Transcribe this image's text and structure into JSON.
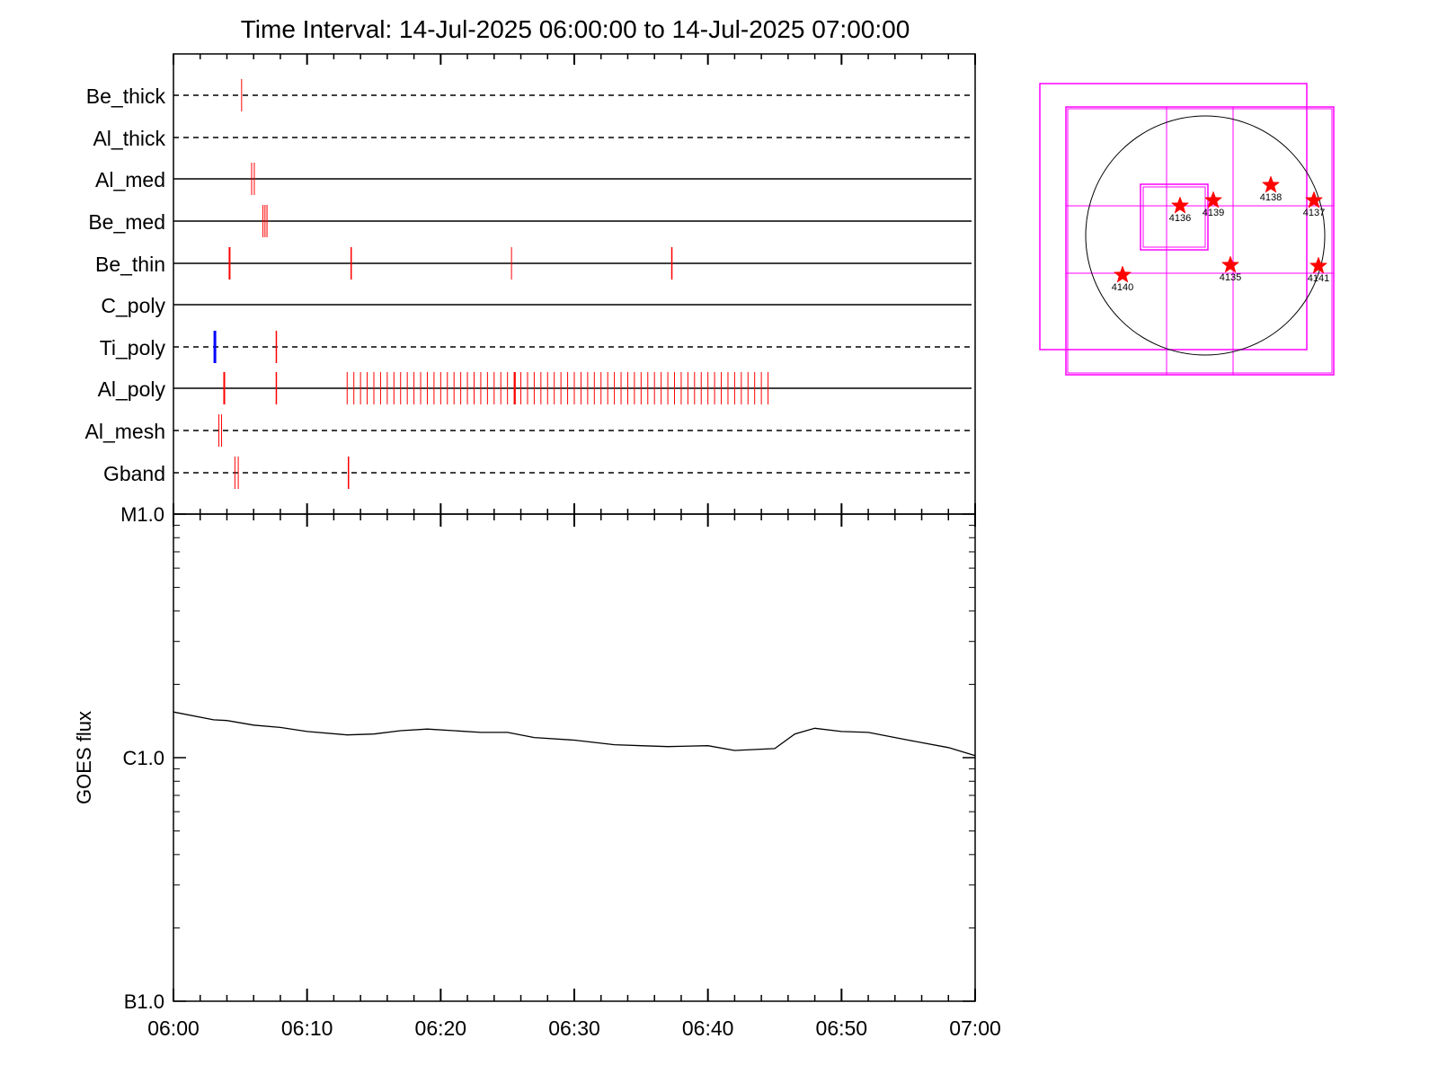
{
  "chart_data": [
    {
      "type": "timeline",
      "title": "Time Interval: 14-Jul-2025 06:00:00 to 14-Jul-2025 07:00:00",
      "x_range": [
        "06:00",
        "07:00"
      ],
      "rows": [
        {
          "name": "Be_thick",
          "baseline": "dashed",
          "events": [
            {
              "t": 5.1,
              "color": "#ff0000",
              "width": 1
            }
          ]
        },
        {
          "name": "Al_thick",
          "baseline": "dashed",
          "events": []
        },
        {
          "name": "Al_med",
          "baseline": "solid",
          "events": [
            {
              "t": 5.85,
              "color": "#ff0000",
              "width": 1
            },
            {
              "t": 6.05,
              "color": "#ff0000",
              "width": 1
            }
          ]
        },
        {
          "name": "Be_med",
          "baseline": "solid",
          "events": [
            {
              "t": 6.7,
              "color": "#ff0000",
              "width": 1
            },
            {
              "t": 6.85,
              "color": "#ff0000",
              "width": 1
            },
            {
              "t": 7.0,
              "color": "#ff0000",
              "width": 1
            }
          ]
        },
        {
          "name": "Be_thin",
          "baseline": "solid",
          "events": [
            {
              "t": 4.2,
              "color": "#ff0000",
              "width": 2
            },
            {
              "t": 13.3,
              "color": "#ff0000",
              "width": 1.5
            },
            {
              "t": 25.3,
              "color": "#ff0000",
              "width": 1
            },
            {
              "t": 37.3,
              "color": "#ff0000",
              "width": 1.5
            }
          ]
        },
        {
          "name": "C_poly",
          "baseline": "solid",
          "events": []
        },
        {
          "name": "Ti_poly",
          "baseline": "dashed",
          "events": [
            {
              "t": 3.1,
              "color": "#0000ff",
              "width": 3
            },
            {
              "t": 7.7,
              "color": "#ff0000",
              "width": 1.5
            }
          ]
        },
        {
          "name": "Al_poly",
          "baseline": "solid",
          "events": [
            {
              "t": 3.8,
              "color": "#ff0000",
              "width": 2
            },
            {
              "t": 7.7,
              "color": "#ff0000",
              "width": 1.5
            }
          ],
          "cadence_events": {
            "start": 13.0,
            "end": 44.5,
            "step": 0.5,
            "color": "#ff0000",
            "width": 1
          },
          "extra_events": [
            {
              "t": 25.55,
              "color": "#ff0000",
              "width": 2
            }
          ]
        },
        {
          "name": "Al_mesh",
          "baseline": "dashed",
          "events": [
            {
              "t": 3.4,
              "color": "#ff0000",
              "width": 1
            },
            {
              "t": 3.6,
              "color": "#ff0000",
              "width": 1
            }
          ]
        },
        {
          "name": "Gband",
          "baseline": "dashed",
          "events": [
            {
              "t": 4.6,
              "color": "#ff0000",
              "width": 1
            },
            {
              "t": 4.85,
              "color": "#ff0000",
              "width": 1
            },
            {
              "t": 13.1,
              "color": "#ff0000",
              "width": 1.5
            }
          ]
        }
      ]
    },
    {
      "type": "line",
      "ylabel": "GOES flux",
      "y_scale": "log",
      "y_ticks": [
        {
          "label": "B1.0",
          "value": 1e-07
        },
        {
          "label": "C1.0",
          "value": 1e-06
        },
        {
          "label": "M1.0",
          "value": 1e-05
        }
      ],
      "x_tick_labels": [
        "06:00",
        "06:10",
        "06:20",
        "06:30",
        "06:40",
        "06:50",
        "07:00"
      ],
      "x_range_minutes": [
        0,
        60
      ],
      "ylim": [
        1e-07,
        1e-05
      ],
      "line_color": "#000000",
      "series": [
        {
          "x": [
            0,
            3,
            4,
            6,
            8,
            10,
            13,
            15,
            17,
            19,
            21,
            23,
            25,
            27,
            30,
            33,
            35,
            37,
            40,
            42,
            45,
            46.5,
            48,
            50,
            52,
            55,
            58,
            60
          ],
          "y": [
            1.54e-06,
            1.43e-06,
            1.42e-06,
            1.36e-06,
            1.33e-06,
            1.28e-06,
            1.24e-06,
            1.25e-06,
            1.29e-06,
            1.31e-06,
            1.29e-06,
            1.27e-06,
            1.27e-06,
            1.21e-06,
            1.18e-06,
            1.13e-06,
            1.12e-06,
            1.11e-06,
            1.12e-06,
            1.07e-06,
            1.09e-06,
            1.25e-06,
            1.32e-06,
            1.28e-06,
            1.27e-06,
            1.18e-06,
            1.1e-06,
            1.02e-06
          ]
        }
      ]
    },
    {
      "type": "scatter",
      "description_free": true,
      "region_labels": [
        "4140",
        "4136",
        "4139",
        "4135",
        "4138",
        "4137",
        "4141"
      ],
      "marker_color": "#ff0000",
      "frame_color": "#ff00ff"
    }
  ]
}
